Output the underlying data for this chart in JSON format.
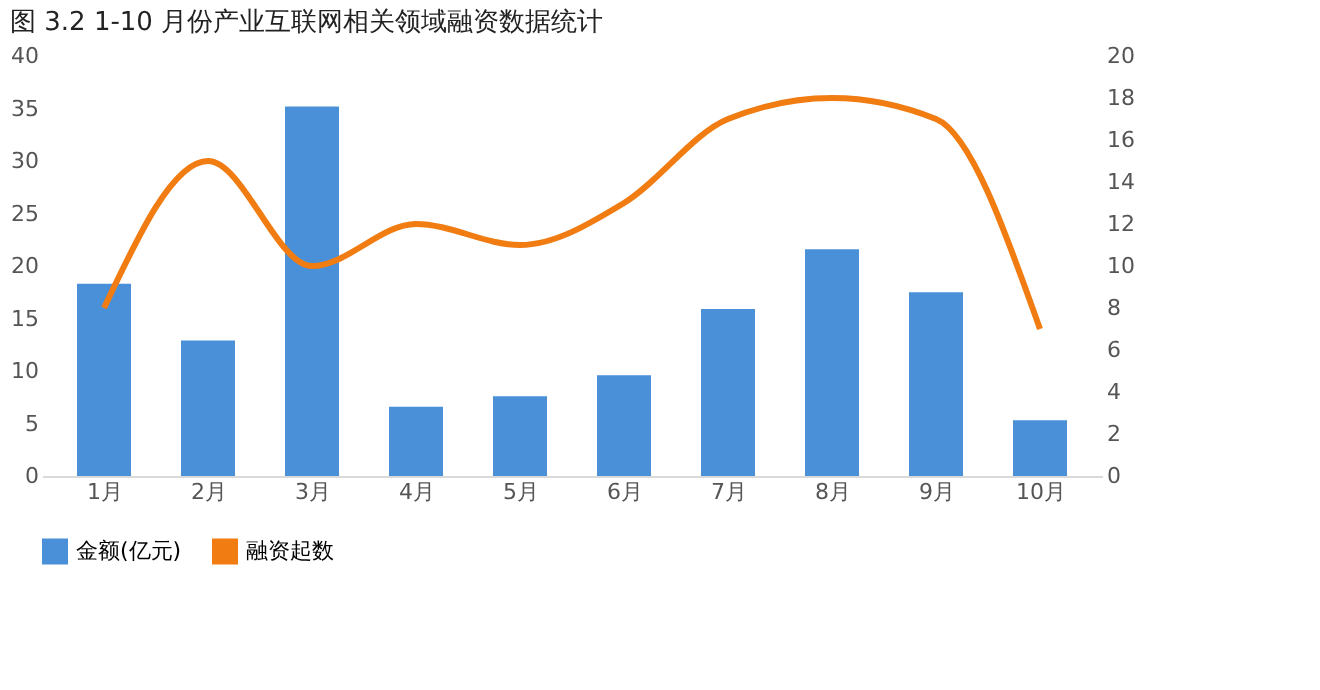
{
  "chart_data": {
    "type": "bar",
    "title": "图 3.2 1-10 月份产业互联网相关领域融资数据统计",
    "categories": [
      "1月",
      "2月",
      "3月",
      "4月",
      "5月",
      "6月",
      "7月",
      "8月",
      "9月",
      "10月"
    ],
    "series": [
      {
        "name": "金额(亿元)",
        "color": "#4a90d9",
        "values": [
          18.3,
          12.9,
          35.2,
          6.6,
          7.6,
          9.6,
          15.9,
          21.6,
          17.5,
          5.3
        ]
      },
      {
        "name": "融资起数",
        "type": "line",
        "axis": "y2",
        "color": "#f07c12",
        "values": [
          8,
          15,
          10,
          12,
          11,
          13,
          17,
          18,
          17,
          7
        ]
      }
    ],
    "ylim": [
      0,
      40
    ],
    "yticks": [
      0,
      5,
      10,
      15,
      20,
      25,
      30,
      35,
      40
    ],
    "y2lim": [
      0,
      20
    ],
    "y2ticks": [
      0,
      2,
      4,
      6,
      8,
      10,
      12,
      14,
      16,
      18,
      20
    ],
    "grid": false,
    "legend": "bottom",
    "marker": "none",
    "line_style": "solid"
  }
}
